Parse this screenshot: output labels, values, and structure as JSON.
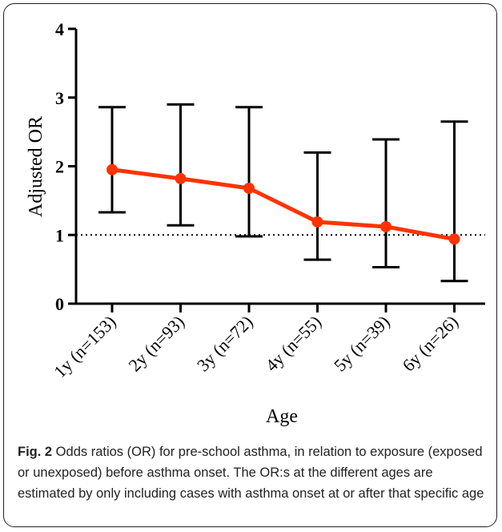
{
  "chart_data": {
    "type": "line",
    "xlabel": "Age",
    "ylabel": "Adjusted OR",
    "ylim": [
      0,
      4
    ],
    "yticks": [
      "0",
      "1",
      "2",
      "3",
      "4"
    ],
    "categories": [
      "1y (n=153)",
      "2y (n=93)",
      "3y (n=72)",
      "4y (n=55)",
      "5y (n=39)",
      "6y (n=26)"
    ],
    "values": [
      1.95,
      1.82,
      1.68,
      1.19,
      1.12,
      0.94
    ],
    "ci_lower": [
      1.33,
      1.14,
      0.98,
      0.64,
      0.53,
      0.33
    ],
    "ci_upper": [
      2.86,
      2.9,
      2.86,
      2.2,
      2.39,
      2.65
    ],
    "reference_line": 1,
    "grid": false,
    "colors": {
      "line": "#ff3300",
      "error_bars": "#000000",
      "axis": "#000000"
    }
  },
  "caption": {
    "label": "Fig. 2",
    "text": " Odds ratios (OR) for pre-school asthma, in relation to exposure (exposed or unexposed) before asthma onset. The OR:s at the different ages are estimated by only including cases with asthma onset at or after that specific age"
  }
}
